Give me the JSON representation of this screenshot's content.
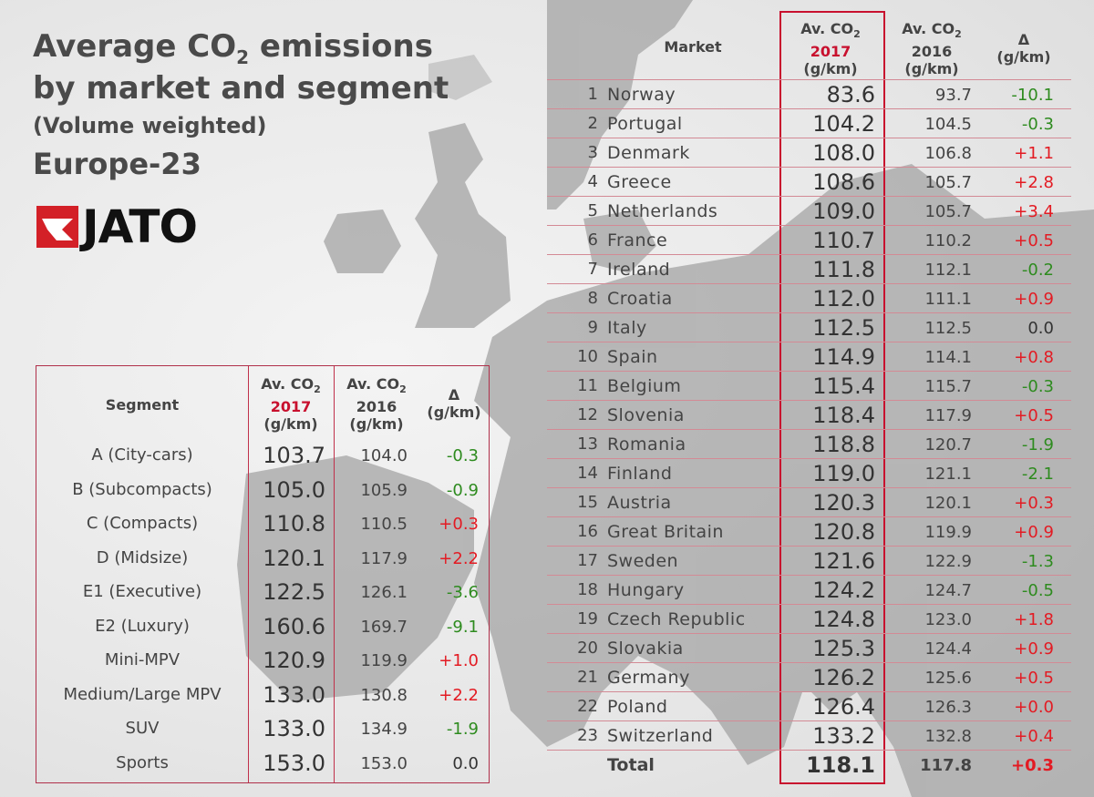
{
  "title": {
    "line1": "Average CO",
    "line1_sub": "2",
    "line1_tail": " emissions",
    "line2": "by market and segment",
    "line3": "(Volume weighted)",
    "line4": "Europe-23"
  },
  "logo": {
    "text": "JATO",
    "brand_color": "#d32027"
  },
  "segment_table": {
    "headers": {
      "segment": "Segment",
      "av": "Av. CO",
      "av_sub": "2",
      "y2017": "2017",
      "y2016": "2016",
      "unit": "(g/km)",
      "delta": "Δ"
    },
    "rows": [
      {
        "name": "A (City-cars)",
        "v2017": "103.7",
        "v2016": "104.0",
        "delta": "-0.3",
        "sign": "neg"
      },
      {
        "name": "B (Subcompacts)",
        "v2017": "105.0",
        "v2016": "105.9",
        "delta": "-0.9",
        "sign": "neg"
      },
      {
        "name": "C (Compacts)",
        "v2017": "110.8",
        "v2016": "110.5",
        "delta": "+0.3",
        "sign": "pos"
      },
      {
        "name": "D (Midsize)",
        "v2017": "120.1",
        "v2016": "117.9",
        "delta": "+2.2",
        "sign": "pos"
      },
      {
        "name": "E1 (Executive)",
        "v2017": "122.5",
        "v2016": "126.1",
        "delta": "-3.6",
        "sign": "neg"
      },
      {
        "name": "E2 (Luxury)",
        "v2017": "160.6",
        "v2016": "169.7",
        "delta": "-9.1",
        "sign": "neg"
      },
      {
        "name": "Mini-MPV",
        "v2017": "120.9",
        "v2016": "119.9",
        "delta": "+1.0",
        "sign": "pos"
      },
      {
        "name": "Medium/Large MPV",
        "v2017": "133.0",
        "v2016": "130.8",
        "delta": "+2.2",
        "sign": "pos"
      },
      {
        "name": "SUV",
        "v2017": "133.0",
        "v2016": "134.9",
        "delta": "-1.9",
        "sign": "neg"
      },
      {
        "name": "Sports",
        "v2017": "153.0",
        "v2016": "153.0",
        "delta": "0.0",
        "sign": "zero"
      }
    ]
  },
  "market_table": {
    "headers": {
      "market": "Market",
      "av": "Av. CO",
      "av_sub": "2",
      "y2017": "2017",
      "y2016": "2016",
      "unit": "(g/km)",
      "delta": "Δ"
    },
    "rows": [
      {
        "rank": "1",
        "name": "Norway",
        "v2017": "83.6",
        "v2016": "93.7",
        "delta": "-10.1",
        "sign": "neg"
      },
      {
        "rank": "2",
        "name": "Portugal",
        "v2017": "104.2",
        "v2016": "104.5",
        "delta": "-0.3",
        "sign": "neg"
      },
      {
        "rank": "3",
        "name": "Denmark",
        "v2017": "108.0",
        "v2016": "106.8",
        "delta": "+1.1",
        "sign": "pos"
      },
      {
        "rank": "4",
        "name": "Greece",
        "v2017": "108.6",
        "v2016": "105.7",
        "delta": "+2.8",
        "sign": "pos"
      },
      {
        "rank": "5",
        "name": "Netherlands",
        "v2017": "109.0",
        "v2016": "105.7",
        "delta": "+3.4",
        "sign": "pos"
      },
      {
        "rank": "6",
        "name": "France",
        "v2017": "110.7",
        "v2016": "110.2",
        "delta": "+0.5",
        "sign": "pos"
      },
      {
        "rank": "7",
        "name": "Ireland",
        "v2017": "111.8",
        "v2016": "112.1",
        "delta": "-0.2",
        "sign": "neg"
      },
      {
        "rank": "8",
        "name": "Croatia",
        "v2017": "112.0",
        "v2016": "111.1",
        "delta": "+0.9",
        "sign": "pos"
      },
      {
        "rank": "9",
        "name": "Italy",
        "v2017": "112.5",
        "v2016": "112.5",
        "delta": "0.0",
        "sign": "zero"
      },
      {
        "rank": "10",
        "name": "Spain",
        "v2017": "114.9",
        "v2016": "114.1",
        "delta": "+0.8",
        "sign": "pos"
      },
      {
        "rank": "11",
        "name": "Belgium",
        "v2017": "115.4",
        "v2016": "115.7",
        "delta": "-0.3",
        "sign": "neg"
      },
      {
        "rank": "12",
        "name": "Slovenia",
        "v2017": "118.4",
        "v2016": "117.9",
        "delta": "+0.5",
        "sign": "pos"
      },
      {
        "rank": "13",
        "name": "Romania",
        "v2017": "118.8",
        "v2016": "120.7",
        "delta": "-1.9",
        "sign": "neg"
      },
      {
        "rank": "14",
        "name": "Finland",
        "v2017": "119.0",
        "v2016": "121.1",
        "delta": "-2.1",
        "sign": "neg"
      },
      {
        "rank": "15",
        "name": "Austria",
        "v2017": "120.3",
        "v2016": "120.1",
        "delta": "+0.3",
        "sign": "pos"
      },
      {
        "rank": "16",
        "name": "Great Britain",
        "v2017": "120.8",
        "v2016": "119.9",
        "delta": "+0.9",
        "sign": "pos"
      },
      {
        "rank": "17",
        "name": "Sweden",
        "v2017": "121.6",
        "v2016": "122.9",
        "delta": "-1.3",
        "sign": "neg"
      },
      {
        "rank": "18",
        "name": "Hungary",
        "v2017": "124.2",
        "v2016": "124.7",
        "delta": "-0.5",
        "sign": "neg"
      },
      {
        "rank": "19",
        "name": "Czech Republic",
        "v2017": "124.8",
        "v2016": "123.0",
        "delta": "+1.8",
        "sign": "pos"
      },
      {
        "rank": "20",
        "name": "Slovakia",
        "v2017": "125.3",
        "v2016": "124.4",
        "delta": "+0.9",
        "sign": "pos"
      },
      {
        "rank": "21",
        "name": "Germany",
        "v2017": "126.2",
        "v2016": "125.6",
        "delta": "+0.5",
        "sign": "pos"
      },
      {
        "rank": "22",
        "name": "Poland",
        "v2017": "126.4",
        "v2016": "126.3",
        "delta": "+0.0",
        "sign": "pos"
      },
      {
        "rank": "23",
        "name": "Switzerland",
        "v2017": "133.2",
        "v2016": "132.8",
        "delta": "+0.4",
        "sign": "pos"
      }
    ],
    "total": {
      "name": "Total",
      "v2017": "118.1",
      "v2016": "117.8",
      "delta": "+0.3",
      "sign": "pos"
    }
  },
  "colors": {
    "positive": "#e31b23",
    "negative": "#2e8b1f",
    "accent": "#c8102e"
  }
}
